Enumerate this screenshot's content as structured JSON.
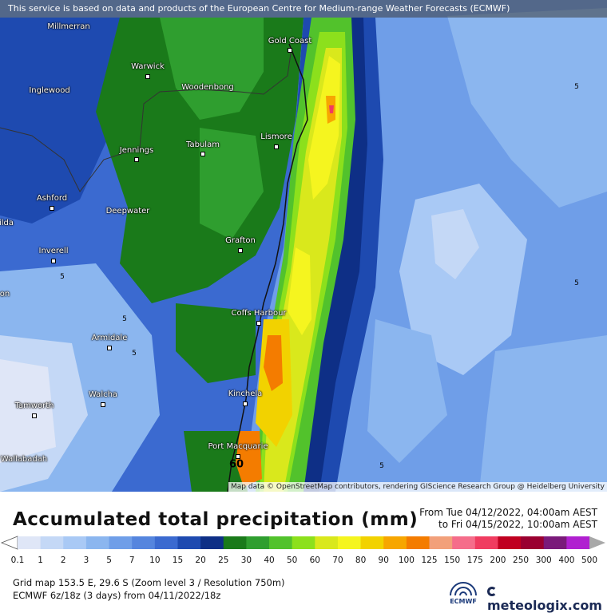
{
  "banner": "This service is based on data and products of the European Centre for Medium-range Weather Forecasts (ECMWF)",
  "attribution": "Map data © OpenStreetMap contributors, rendering GIScience Research Group @ Heidelberg University",
  "cities": [
    {
      "id": "millmerran",
      "name": "Millmerran"
    },
    {
      "id": "gold-coast",
      "name": "Gold Coast"
    },
    {
      "id": "warwick",
      "name": "Warwick"
    },
    {
      "id": "inglewood",
      "name": "Inglewood"
    },
    {
      "id": "woodenbong",
      "name": "Woodenbong"
    },
    {
      "id": "lismore",
      "name": "Lismore"
    },
    {
      "id": "tabulam",
      "name": "Tabulam"
    },
    {
      "id": "jennings",
      "name": "Jennings"
    },
    {
      "id": "ashford",
      "name": "Ashford"
    },
    {
      "id": "deepwater",
      "name": "Deepwater"
    },
    {
      "id": "grafton",
      "name": "Grafton"
    },
    {
      "id": "inverell",
      "name": "Inverell"
    },
    {
      "id": "coffs-harbour",
      "name": "Coffs Harbour"
    },
    {
      "id": "armidale",
      "name": "Armidale"
    },
    {
      "id": "walcha",
      "name": "Walcha"
    },
    {
      "id": "tamworth",
      "name": "Tamworth"
    },
    {
      "id": "kinchela",
      "name": "Kinchela"
    },
    {
      "id": "port-macquarie",
      "name": "Port Macquarie"
    },
    {
      "id": "wallabadah",
      "name": "Wallabadah"
    },
    {
      "id": "ilda",
      "name": "ilda"
    },
    {
      "id": "on",
      "name": "on"
    }
  ],
  "contour_labels": [
    {
      "id": "c1",
      "text": "5"
    },
    {
      "id": "c2",
      "text": "5"
    },
    {
      "id": "c3",
      "text": "5"
    },
    {
      "id": "c4",
      "text": "5"
    },
    {
      "id": "c5",
      "text": "5"
    },
    {
      "id": "c6",
      "text": "5"
    },
    {
      "id": "c7",
      "text": "60"
    }
  ],
  "legend": {
    "title": "Accumulated total precipitation (mm)",
    "period_from": "From Tue 04/12/2022, 04:00am AEST",
    "period_to": "to Fri 04/15/2022, 10:00am AEST",
    "scale_values": [
      "0.1",
      "1",
      "2",
      "3",
      "5",
      "7",
      "10",
      "15",
      "20",
      "25",
      "30",
      "40",
      "50",
      "60",
      "70",
      "80",
      "90",
      "100",
      "125",
      "150",
      "175",
      "200",
      "250",
      "300",
      "400",
      "500"
    ],
    "scale_colors": [
      "#dfe6f7",
      "#c4d8f6",
      "#a9c9f5",
      "#8bb6ef",
      "#6f9ee8",
      "#5585de",
      "#3b6ad0",
      "#1e4ab0",
      "#0e2f86",
      "#1a7a1a",
      "#2f9e2f",
      "#52c22c",
      "#8ce01c",
      "#d9e81c",
      "#f5f51f",
      "#f2d200",
      "#f7a600",
      "#f47c00",
      "#f2a07a",
      "#f56d8a",
      "#f03c60",
      "#c00020",
      "#9a0030",
      "#7a1a7a",
      "#b020d0",
      "#d060f0",
      "#e8a0f8",
      "#f5d0fb",
      "#f8eefc",
      "#d8d8d8",
      "#a8a8a8"
    ],
    "grid_info": "Grid map 153.5 E, 29.6 S (Zoom level 3 / Resolution 750m)",
    "model_info": "ECMWF 6z/18z (3 days) from  04/11/2022/18z",
    "ecmwf_label": "ECMWF",
    "brand": "meteologix.com"
  }
}
